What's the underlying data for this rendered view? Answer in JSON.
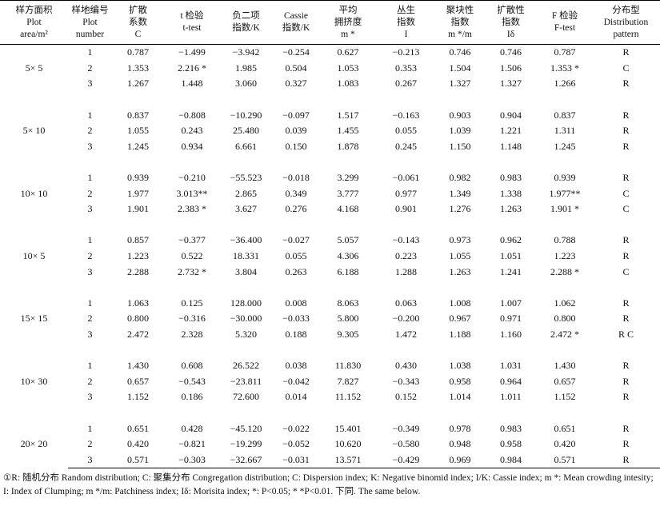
{
  "table": {
    "header": [
      [
        "样方面积",
        "Plot",
        "area/m²"
      ],
      [
        "样地编号",
        "Plot",
        "number"
      ],
      [
        "扩散",
        "系数",
        "C"
      ],
      [
        "t 检验",
        "t-test"
      ],
      [
        "负二项",
        "指数/K"
      ],
      [
        "Cassie",
        "指数/K"
      ],
      [
        "平均",
        "拥挤度",
        "m *"
      ],
      [
        "丛生",
        "指数",
        "I"
      ],
      [
        "聚块性",
        "指数",
        "m */m"
      ],
      [
        "扩散性",
        "指数",
        "Iδ"
      ],
      [
        "F 检验",
        "F-test"
      ],
      [
        "分布型",
        "Distribution",
        "pattern"
      ]
    ],
    "groups": [
      {
        "label": "5× 5",
        "rows": [
          [
            "1",
            "0.787",
            "−1.499",
            "−3.942",
            "−0.254",
            "0.627",
            "−0.213",
            "0.746",
            "0.746",
            "0.787",
            "R"
          ],
          [
            "2",
            "1.353",
            "2.216 *",
            "1.985",
            "0.504",
            "1.053",
            "0.353",
            "1.504",
            "1.506",
            "1.353 *",
            "C"
          ],
          [
            "3",
            "1.267",
            "1.448",
            "3.060",
            "0.327",
            "1.083",
            "0.267",
            "1.327",
            "1.327",
            "1.266",
            "R"
          ]
        ]
      },
      {
        "label": "5× 10",
        "rows": [
          [
            "1",
            "0.837",
            "−0.808",
            "−10.290",
            "−0.097",
            "1.517",
            "−0.163",
            "0.903",
            "0.904",
            "0.837",
            "R"
          ],
          [
            "2",
            "1.055",
            "0.243",
            "25.480",
            "0.039",
            "1.455",
            "0.055",
            "1.039",
            "1.221",
            "1.311",
            "R"
          ],
          [
            "3",
            "1.245",
            "0.934",
            "6.661",
            "0.150",
            "1.878",
            "0.245",
            "1.150",
            "1.148",
            "1.245",
            "R"
          ]
        ]
      },
      {
        "label": "10× 10",
        "rows": [
          [
            "1",
            "0.939",
            "−0.210",
            "−55.523",
            "−0.018",
            "3.299",
            "−0.061",
            "0.982",
            "0.983",
            "0.939",
            "R"
          ],
          [
            "2",
            "1.977",
            "3.013**",
            "2.865",
            "0.349",
            "3.777",
            "0.977",
            "1.349",
            "1.338",
            "1.977**",
            "C"
          ],
          [
            "3",
            "1.901",
            "2.383 *",
            "3.627",
            "0.276",
            "4.168",
            "0.901",
            "1.276",
            "1.263",
            "1.901 *",
            "C"
          ]
        ]
      },
      {
        "label": "10× 5",
        "rows": [
          [
            "1",
            "0.857",
            "−0.377",
            "−36.400",
            "−0.027",
            "5.057",
            "−0.143",
            "0.973",
            "0.962",
            "0.788",
            "R"
          ],
          [
            "2",
            "1.223",
            "0.522",
            "18.331",
            "0.055",
            "4.306",
            "0.223",
            "1.055",
            "1.051",
            "1.223",
            "R"
          ],
          [
            "3",
            "2.288",
            "2.732 *",
            "3.804",
            "0.263",
            "6.188",
            "1.288",
            "1.263",
            "1.241",
            "2.288 *",
            "C"
          ]
        ]
      },
      {
        "label": "15× 15",
        "rows": [
          [
            "1",
            "1.063",
            "0.125",
            "128.000",
            "0.008",
            "8.063",
            "0.063",
            "1.008",
            "1.007",
            "1.062",
            "R"
          ],
          [
            "2",
            "0.800",
            "−0.316",
            "−30.000",
            "−0.033",
            "5.800",
            "−0.200",
            "0.967",
            "0.971",
            "0.800",
            "R"
          ],
          [
            "3",
            "2.472",
            "2.328",
            "5.320",
            "0.188",
            "9.305",
            "1.472",
            "1.188",
            "1.160",
            "2.472 *",
            "R C"
          ]
        ]
      },
      {
        "label": "10× 30",
        "rows": [
          [
            "1",
            "1.430",
            "0.608",
            "26.522",
            "0.038",
            "11.830",
            "0.430",
            "1.038",
            "1.031",
            "1.430",
            "R"
          ],
          [
            "2",
            "0.657",
            "−0.543",
            "−23.811",
            "−0.042",
            "7.827",
            "−0.343",
            "0.958",
            "0.964",
            "0.657",
            "R"
          ],
          [
            "3",
            "1.152",
            "0.186",
            "72.600",
            "0.014",
            "11.152",
            "0.152",
            "1.014",
            "1.011",
            "1.152",
            "R"
          ]
        ]
      },
      {
        "label": "20× 20",
        "rows": [
          [
            "1",
            "0.651",
            "0.428",
            "−45.120",
            "−0.022",
            "15.401",
            "−0.349",
            "0.978",
            "0.983",
            "0.651",
            "R"
          ],
          [
            "2",
            "0.420",
            "−0.821",
            "−19.299",
            "−0.052",
            "10.620",
            "−0.580",
            "0.948",
            "0.958",
            "0.420",
            "R"
          ],
          [
            "3",
            "0.571",
            "−0.303",
            "−32.667",
            "−0.031",
            "13.571",
            "−0.429",
            "0.969",
            "0.984",
            "0.571",
            "R"
          ]
        ]
      }
    ]
  },
  "footnote": "①R: 随机分布 Random distribution; C: 聚集分布 Congregation distribution; C: Dispersion index; K: Negative binomid index; I/K: Cassie index; m *: Mean crowding intesity; I: Index of Clumping; m */m: Patchiness index; Iδ: Morisita index; *: P<0.05; * *P<0.01. 下同. The same below."
}
